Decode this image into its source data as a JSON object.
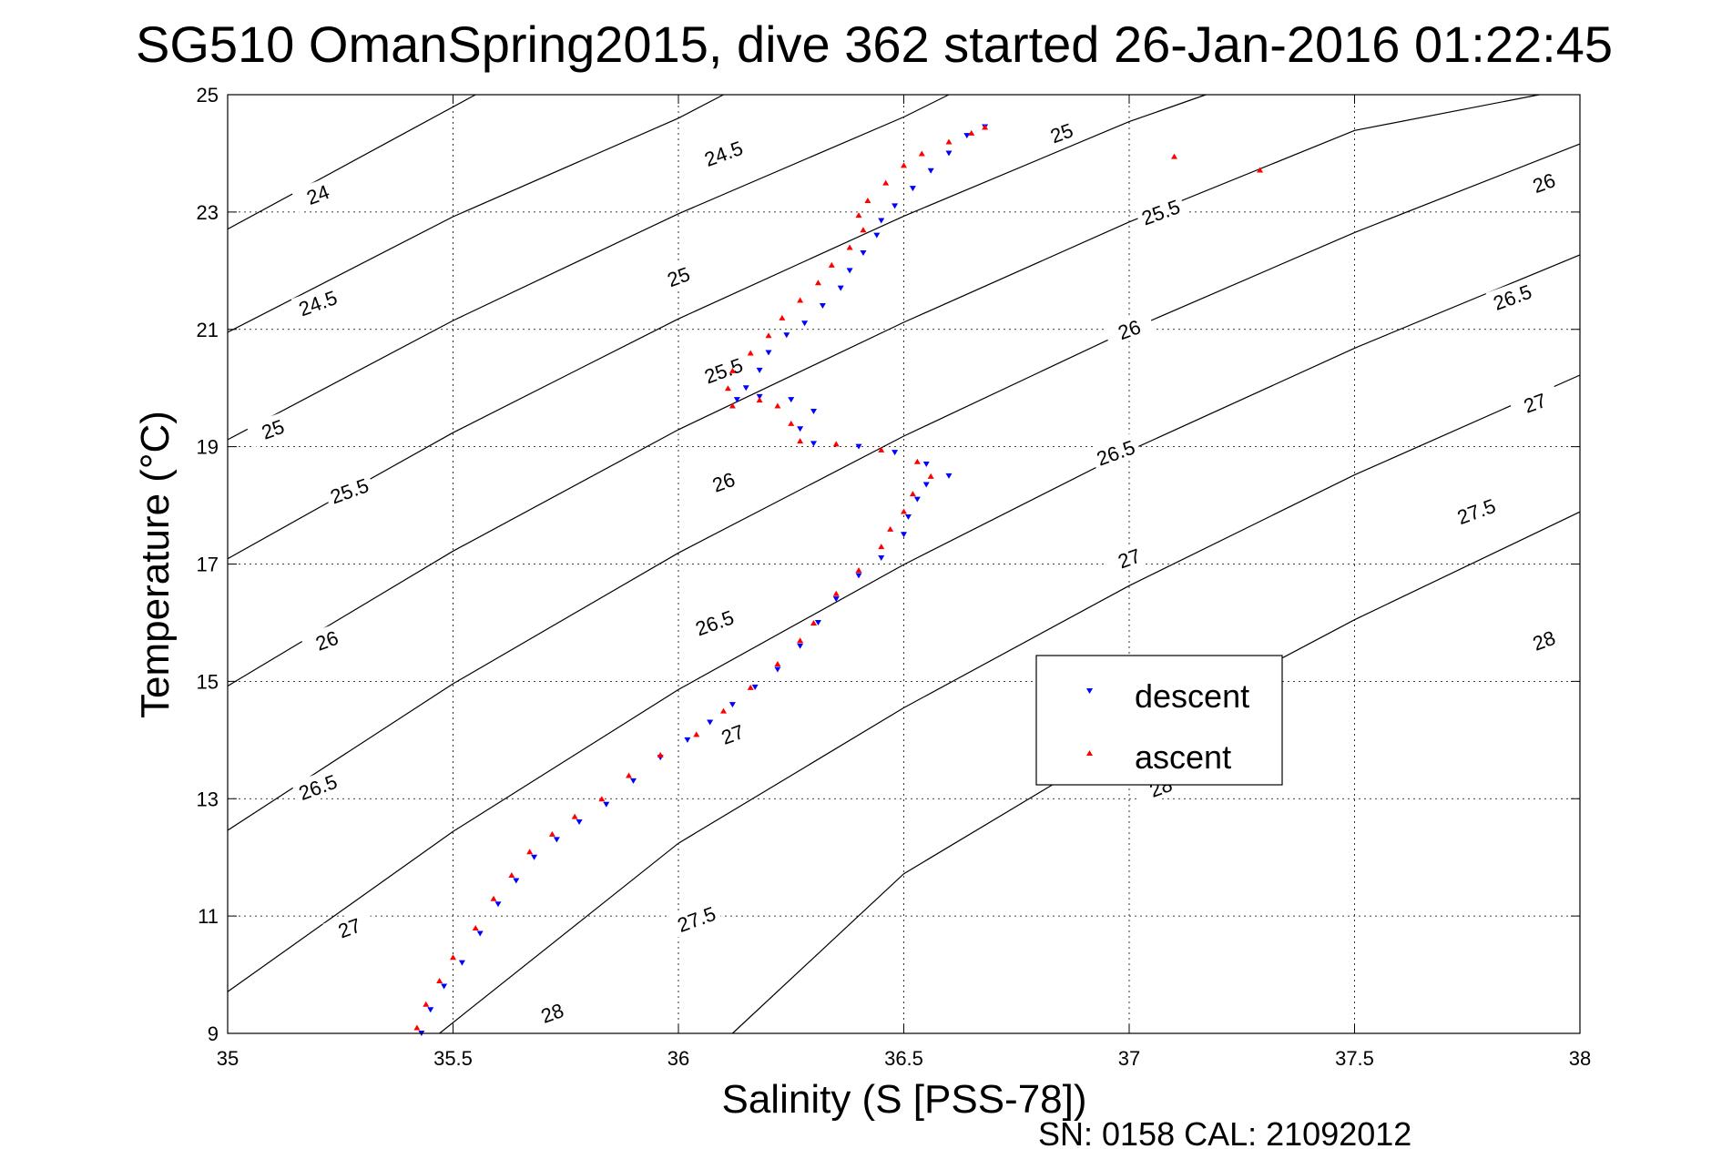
{
  "chart_data": {
    "type": "scatter",
    "title": "SG510 OmanSpring2015, dive 362 started 26-Jan-2016 01:22:45",
    "xlabel": "Salinity (S [PSS-78])",
    "ylabel": "Temperature (°C)",
    "xlim": [
      35,
      38
    ],
    "ylim": [
      9,
      25
    ],
    "x_ticks": [
      "35",
      "35.5",
      "36",
      "36.5",
      "37",
      "37.5",
      "38"
    ],
    "y_ticks": [
      "9",
      "11",
      "13",
      "15",
      "17",
      "19",
      "21",
      "23",
      "25"
    ],
    "grid": true,
    "legend_position": "center-right",
    "footer": "SN: 0158  CAL: 21092012",
    "colors": {
      "descent": "#0000ff",
      "ascent": "#ff0000",
      "contour": "#000000"
    },
    "series": [
      {
        "name": "descent",
        "marker": "triangle-down",
        "points": [
          [
            35.43,
            9.0
          ],
          [
            35.45,
            9.4
          ],
          [
            35.48,
            9.8
          ],
          [
            35.52,
            10.2
          ],
          [
            35.56,
            10.7
          ],
          [
            35.6,
            11.2
          ],
          [
            35.64,
            11.6
          ],
          [
            35.68,
            12.0
          ],
          [
            35.73,
            12.3
          ],
          [
            35.78,
            12.6
          ],
          [
            35.84,
            12.9
          ],
          [
            35.9,
            13.3
          ],
          [
            35.96,
            13.7
          ],
          [
            36.02,
            14.0
          ],
          [
            36.07,
            14.3
          ],
          [
            36.12,
            14.6
          ],
          [
            36.17,
            14.9
          ],
          [
            36.22,
            15.2
          ],
          [
            36.27,
            15.6
          ],
          [
            36.31,
            16.0
          ],
          [
            36.35,
            16.4
          ],
          [
            36.4,
            16.8
          ],
          [
            36.45,
            17.1
          ],
          [
            36.5,
            17.5
          ],
          [
            36.51,
            17.8
          ],
          [
            36.53,
            18.1
          ],
          [
            36.55,
            18.35
          ],
          [
            36.6,
            18.5
          ],
          [
            36.55,
            18.7
          ],
          [
            36.48,
            18.9
          ],
          [
            36.4,
            19.0
          ],
          [
            36.3,
            19.05
          ],
          [
            36.27,
            19.3
          ],
          [
            36.3,
            19.6
          ],
          [
            36.25,
            19.8
          ],
          [
            36.18,
            19.85
          ],
          [
            36.13,
            19.8
          ],
          [
            36.15,
            20.0
          ],
          [
            36.18,
            20.3
          ],
          [
            36.2,
            20.6
          ],
          [
            36.24,
            20.9
          ],
          [
            36.28,
            21.1
          ],
          [
            36.32,
            21.4
          ],
          [
            36.36,
            21.7
          ],
          [
            36.38,
            22.0
          ],
          [
            36.41,
            22.3
          ],
          [
            36.44,
            22.6
          ],
          [
            36.45,
            22.85
          ],
          [
            36.48,
            23.1
          ],
          [
            36.52,
            23.4
          ],
          [
            36.56,
            23.7
          ],
          [
            36.6,
            24.0
          ],
          [
            36.64,
            24.3
          ],
          [
            36.68,
            24.45
          ]
        ]
      },
      {
        "name": "ascent",
        "marker": "triangle-up",
        "points": [
          [
            35.42,
            9.1
          ],
          [
            35.44,
            9.5
          ],
          [
            35.47,
            9.9
          ],
          [
            35.5,
            10.3
          ],
          [
            35.55,
            10.8
          ],
          [
            35.59,
            11.3
          ],
          [
            35.63,
            11.7
          ],
          [
            35.67,
            12.1
          ],
          [
            35.72,
            12.4
          ],
          [
            35.77,
            12.7
          ],
          [
            35.83,
            13.0
          ],
          [
            35.89,
            13.4
          ],
          [
            35.96,
            13.75
          ],
          [
            36.04,
            14.1
          ],
          [
            36.1,
            14.5
          ],
          [
            36.16,
            14.9
          ],
          [
            36.22,
            15.3
          ],
          [
            36.27,
            15.7
          ],
          [
            36.3,
            16.0
          ],
          [
            36.35,
            16.5
          ],
          [
            36.4,
            16.9
          ],
          [
            36.45,
            17.3
          ],
          [
            36.47,
            17.6
          ],
          [
            36.5,
            17.9
          ],
          [
            36.52,
            18.2
          ],
          [
            36.56,
            18.5
          ],
          [
            36.53,
            18.75
          ],
          [
            36.45,
            18.95
          ],
          [
            36.35,
            19.05
          ],
          [
            36.27,
            19.1
          ],
          [
            36.25,
            19.4
          ],
          [
            36.22,
            19.7
          ],
          [
            36.18,
            19.8
          ],
          [
            36.12,
            19.7
          ],
          [
            36.11,
            20.0
          ],
          [
            36.12,
            20.3
          ],
          [
            36.16,
            20.6
          ],
          [
            36.2,
            20.9
          ],
          [
            36.23,
            21.2
          ],
          [
            36.27,
            21.5
          ],
          [
            36.31,
            21.8
          ],
          [
            36.34,
            22.1
          ],
          [
            36.38,
            22.4
          ],
          [
            36.41,
            22.7
          ],
          [
            36.4,
            22.95
          ],
          [
            36.42,
            23.2
          ],
          [
            36.46,
            23.5
          ],
          [
            36.5,
            23.8
          ],
          [
            36.54,
            24.0
          ],
          [
            36.6,
            24.2
          ],
          [
            36.65,
            24.35
          ],
          [
            36.68,
            24.45
          ],
          [
            37.1,
            23.95
          ],
          [
            37.29,
            23.72
          ]
        ]
      }
    ],
    "density_contours": [
      {
        "label": "24",
        "points": [
          [
            35.0,
            22.71
          ],
          [
            35.37,
            24.25
          ],
          [
            35.55,
            25.0
          ]
        ]
      },
      {
        "label": "24.5",
        "points": [
          [
            35.0,
            20.95
          ],
          [
            35.5,
            22.92
          ],
          [
            36.0,
            24.6
          ],
          [
            36.1,
            25.0
          ]
        ]
      },
      {
        "label": "25",
        "points": [
          [
            35.0,
            19.12
          ],
          [
            35.5,
            21.15
          ],
          [
            36.0,
            22.97
          ],
          [
            36.5,
            24.62
          ],
          [
            36.6,
            25.0
          ]
        ]
      },
      {
        "label": "25.5",
        "points": [
          [
            35.0,
            17.09
          ],
          [
            35.5,
            19.24
          ],
          [
            36.0,
            21.18
          ],
          [
            36.5,
            22.93
          ],
          [
            37.0,
            24.54
          ],
          [
            37.17,
            25.0
          ]
        ]
      },
      {
        "label": "26",
        "points": [
          [
            35.0,
            14.92
          ],
          [
            35.5,
            17.22
          ],
          [
            36.0,
            19.29
          ],
          [
            36.5,
            21.12
          ],
          [
            37.0,
            22.83
          ],
          [
            37.5,
            24.39
          ],
          [
            37.91,
            25.0
          ]
        ]
      },
      {
        "label": "26.5",
        "points": [
          [
            35.0,
            12.46
          ],
          [
            35.5,
            14.96
          ],
          [
            36.0,
            17.19
          ],
          [
            36.5,
            19.18
          ],
          [
            37.0,
            20.99
          ],
          [
            37.5,
            22.65
          ],
          [
            38.0,
            24.16
          ]
        ]
      },
      {
        "label": "27",
        "points": [
          [
            35.0,
            9.71
          ],
          [
            35.5,
            12.44
          ],
          [
            36.0,
            14.86
          ],
          [
            36.5,
            16.99
          ],
          [
            37.0,
            18.93
          ],
          [
            37.5,
            20.68
          ],
          [
            38.0,
            22.27
          ]
        ]
      },
      {
        "label": "27.5",
        "points": [
          [
            35.47,
            9.0
          ],
          [
            36.0,
            12.24
          ],
          [
            36.5,
            14.55
          ],
          [
            37.0,
            16.63
          ],
          [
            37.5,
            18.52
          ],
          [
            38.0,
            20.22
          ]
        ]
      },
      {
        "label": "28",
        "points": [
          [
            36.12,
            9.0
          ],
          [
            36.5,
            11.72
          ],
          [
            37.0,
            14.02
          ],
          [
            37.5,
            16.05
          ],
          [
            38.0,
            17.89
          ]
        ]
      }
    ],
    "contour_labels": [
      {
        "text": "24",
        "x": 35.2,
        "y": 23.3
      },
      {
        "text": "24.5",
        "x": 36.1,
        "y": 24.0
      },
      {
        "text": "24.5",
        "x": 35.2,
        "y": 21.45
      },
      {
        "text": "25",
        "x": 36.0,
        "y": 21.9
      },
      {
        "text": "25",
        "x": 35.1,
        "y": 19.3
      },
      {
        "text": "25",
        "x": 36.85,
        "y": 24.35
      },
      {
        "text": "25.5",
        "x": 36.1,
        "y": 20.3
      },
      {
        "text": "25.5",
        "x": 35.27,
        "y": 18.25
      },
      {
        "text": "25.5",
        "x": 37.07,
        "y": 23.0
      },
      {
        "text": "26",
        "x": 36.1,
        "y": 18.4
      },
      {
        "text": "26",
        "x": 35.22,
        "y": 15.7
      },
      {
        "text": "26",
        "x": 37.0,
        "y": 21.0
      },
      {
        "text": "26",
        "x": 37.92,
        "y": 23.5
      },
      {
        "text": "26.5",
        "x": 36.08,
        "y": 16.0
      },
      {
        "text": "26.5",
        "x": 35.2,
        "y": 13.2
      },
      {
        "text": "26.5",
        "x": 36.97,
        "y": 18.9
      },
      {
        "text": "26.5",
        "x": 37.85,
        "y": 21.55
      },
      {
        "text": "27",
        "x": 36.12,
        "y": 14.1
      },
      {
        "text": "27",
        "x": 35.27,
        "y": 10.8
      },
      {
        "text": "27",
        "x": 37.0,
        "y": 17.1
      },
      {
        "text": "27",
        "x": 37.9,
        "y": 19.75
      },
      {
        "text": "27.5",
        "x": 36.04,
        "y": 10.95
      },
      {
        "text": "27.5",
        "x": 37.77,
        "y": 17.9
      },
      {
        "text": "28",
        "x": 35.72,
        "y": 9.35
      },
      {
        "text": "28",
        "x": 37.07,
        "y": 13.2
      },
      {
        "text": "28",
        "x": 37.92,
        "y": 15.7
      }
    ]
  }
}
